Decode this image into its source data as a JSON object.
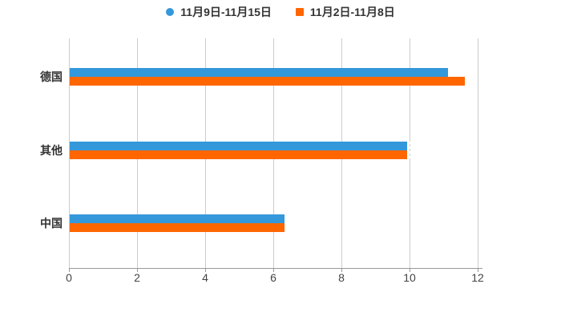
{
  "chart_data": {
    "type": "bar",
    "orientation": "horizontal",
    "title": "",
    "xlabel": "",
    "ylabel": "",
    "categories": [
      "德国",
      "其他",
      "中国"
    ],
    "series": [
      {
        "name": "11月9日-11月15日",
        "marker": "circle",
        "color": "#3498db",
        "values": [
          11.1,
          9.9,
          6.3
        ]
      },
      {
        "name": "11月2日-11月8日",
        "marker": "square",
        "color": "#ff6600",
        "values": [
          11.6,
          9.9,
          6.3
        ]
      }
    ],
    "x_ticks": [
      0,
      2,
      4,
      6,
      8,
      10,
      12
    ],
    "xlim": [
      0,
      12
    ],
    "grid": true,
    "legend_position": "top-center",
    "dashed_gridline_segment": {
      "x_value": 10,
      "category_index": 1
    }
  },
  "colors": {
    "series_blue": "#3498db",
    "series_orange": "#ff6600",
    "gridline": "#cccccc",
    "axis_line": "#999999",
    "tick_text": "#444444",
    "label_text": "#333333",
    "background": "#ffffff"
  }
}
